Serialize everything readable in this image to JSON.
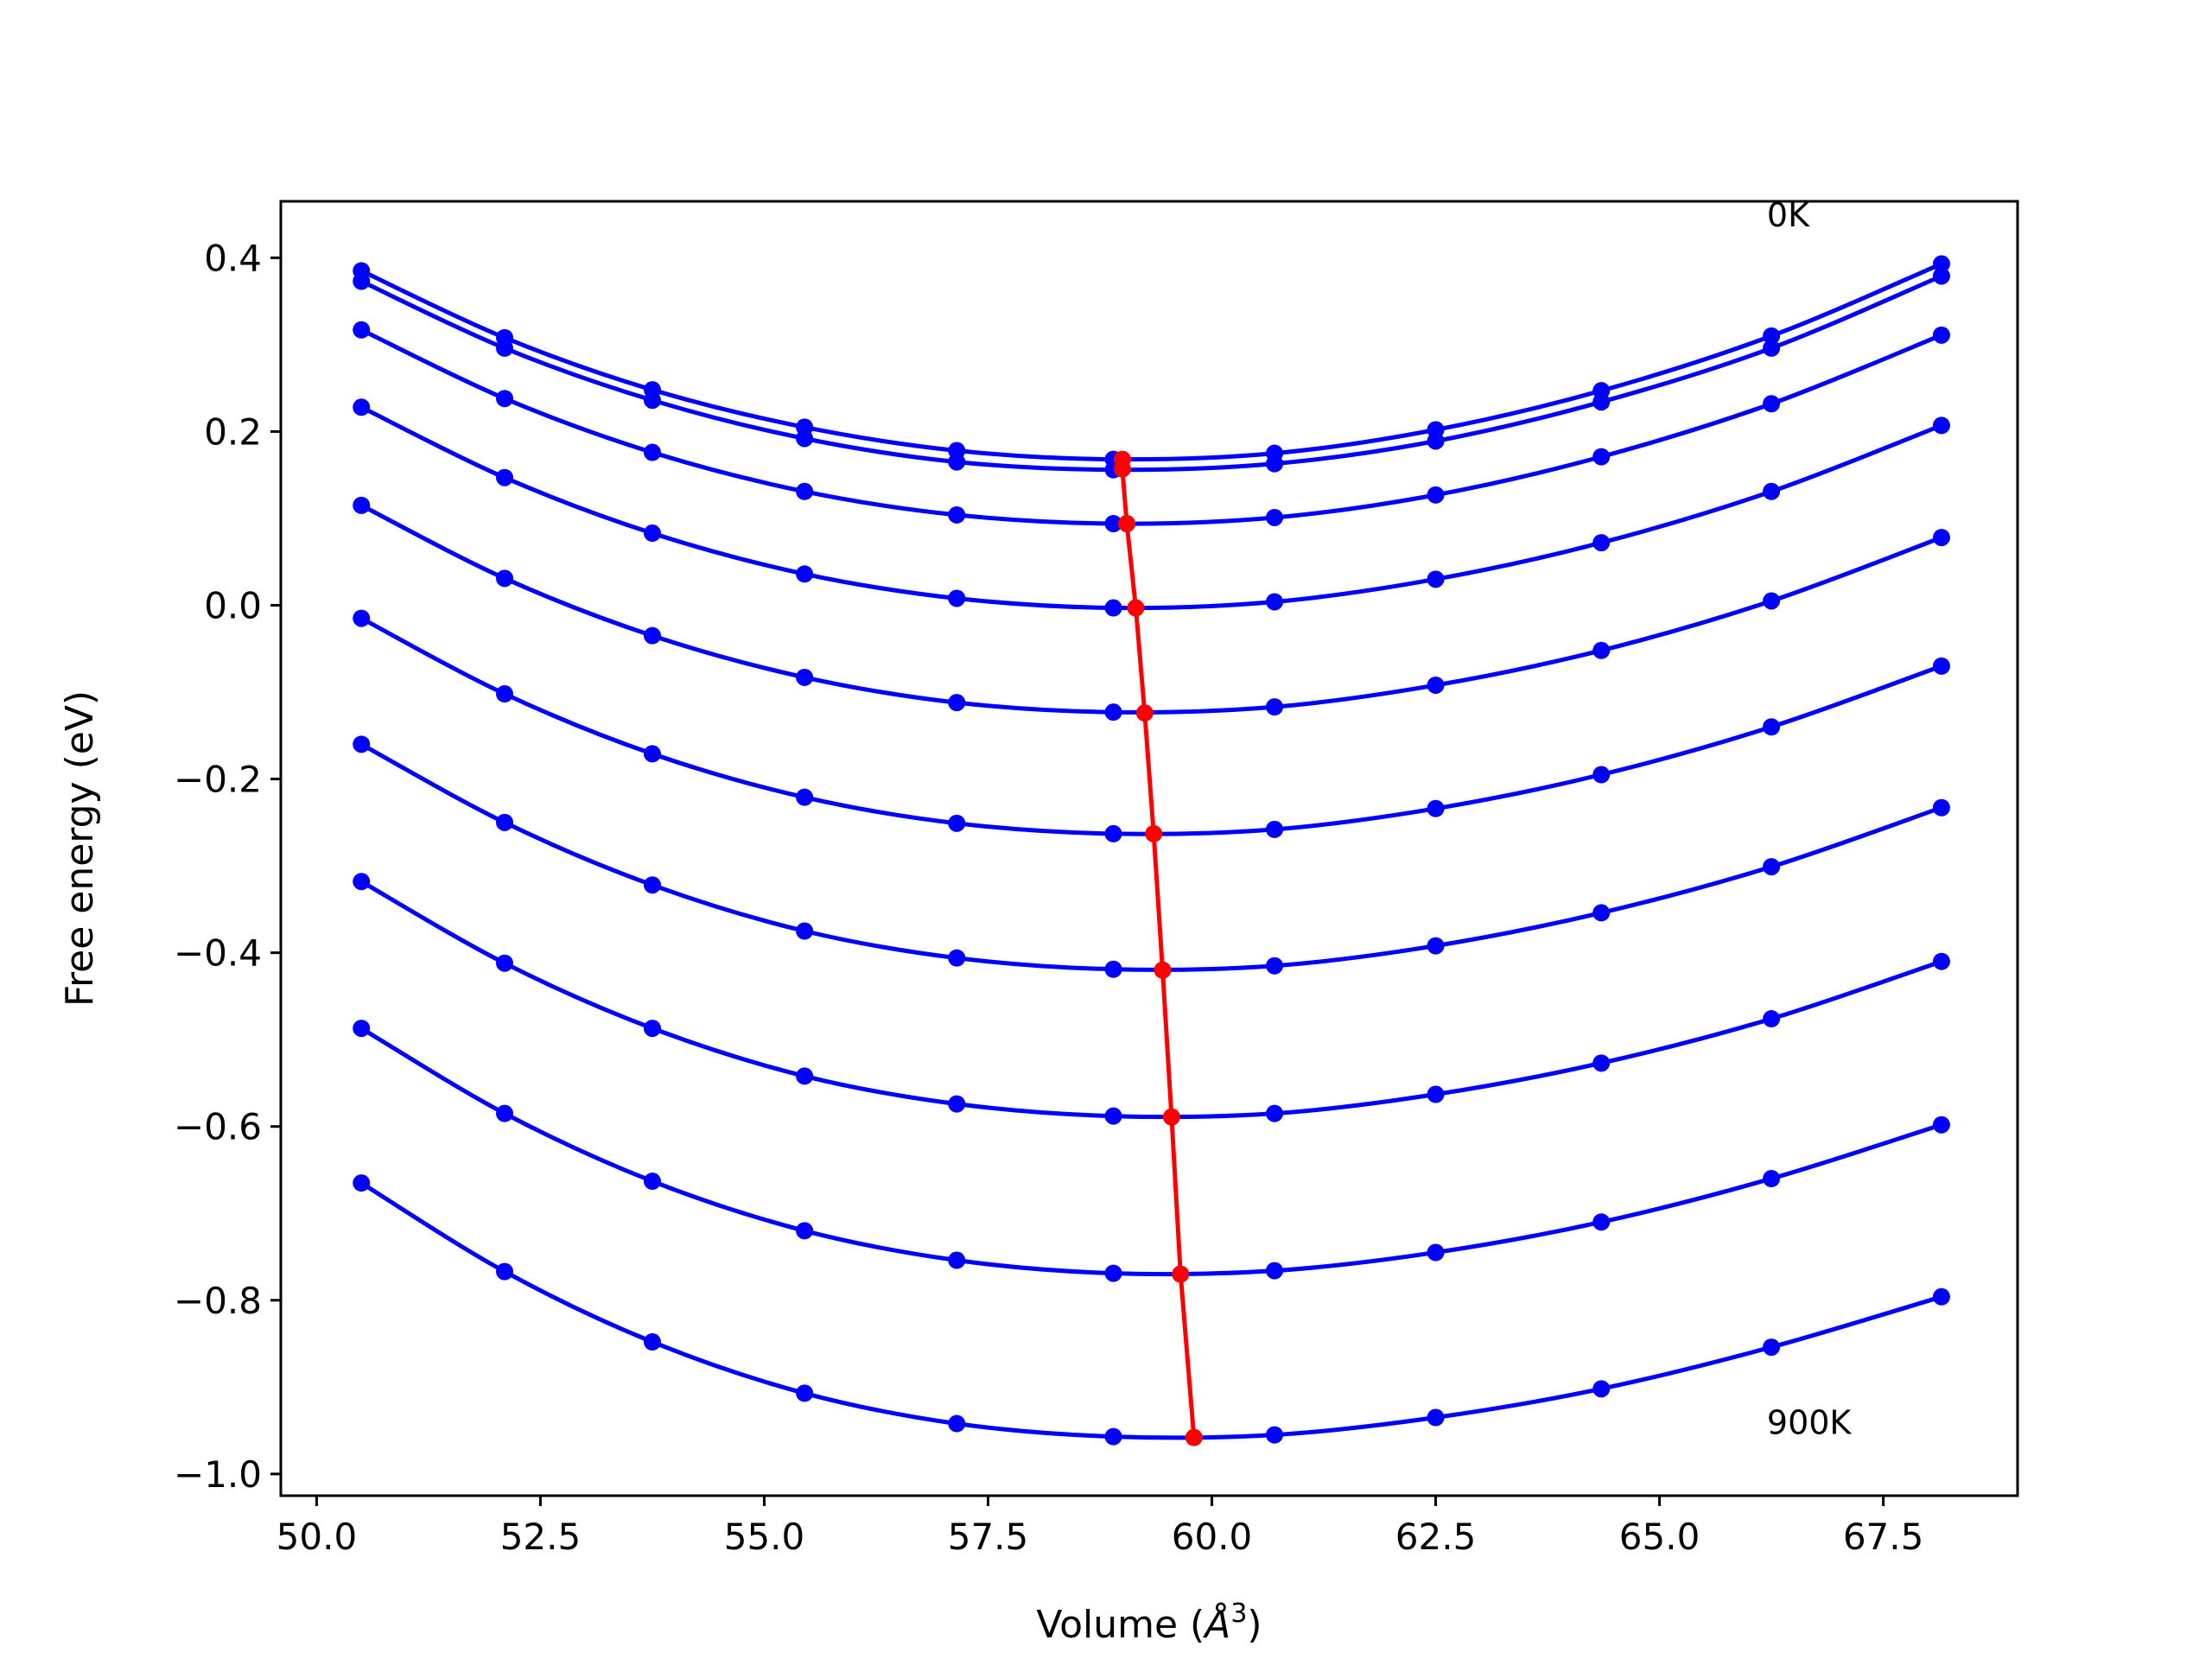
{
  "chart_data": {
    "type": "line",
    "xlabel": "Volume (",
    "xlabel_unit": "Å",
    "xlabel_power": "3",
    "xlabel_close": ")",
    "ylabel": "Free energy (eV)",
    "xlim": [
      49.6,
      69.0
    ],
    "ylim": [
      -1.025,
      0.465
    ],
    "x_ticks": [
      50.0,
      52.5,
      55.0,
      57.5,
      60.0,
      62.5,
      65.0,
      67.5
    ],
    "x_tick_labels": [
      "50.0",
      "52.5",
      "55.0",
      "57.5",
      "60.0",
      "62.5",
      "65.0",
      "67.5"
    ],
    "y_ticks": [
      0.4,
      0.2,
      0.0,
      -0.2,
      -0.4,
      -0.6,
      -0.8,
      -1.0
    ],
    "y_tick_labels": [
      "0.4",
      "0.2",
      "0.0",
      "−0.2",
      "−0.4",
      "−0.6",
      "−0.8",
      "−1.0"
    ],
    "grid": false,
    "annotations": [
      {
        "text": "0K",
        "x": 66.2,
        "y": 0.45
      },
      {
        "text": "900K",
        "x": 66.2,
        "y": -0.94
      }
    ],
    "colors": {
      "series": "#0000ff",
      "minimum_line": "#ff0000",
      "axes": "#000000"
    },
    "x": [
      50.5,
      52.1,
      53.75,
      55.45,
      57.15,
      58.9,
      60.7,
      62.5,
      64.35,
      66.25,
      68.15
    ],
    "series": [
      {
        "values": [
          0.385,
          0.308,
          0.248,
          0.205,
          0.178,
          0.168,
          0.175,
          0.202,
          0.247,
          0.31,
          0.393
        ],
        "min": [
          59.0,
          0.168
        ]
      },
      {
        "values": [
          0.373,
          0.296,
          0.236,
          0.192,
          0.165,
          0.156,
          0.163,
          0.189,
          0.234,
          0.296,
          0.379
        ],
        "min": [
          59.0,
          0.157
        ]
      },
      {
        "values": [
          0.317,
          0.238,
          0.176,
          0.131,
          0.104,
          0.094,
          0.101,
          0.127,
          0.171,
          0.232,
          0.311
        ],
        "min": [
          59.05,
          0.094
        ]
      },
      {
        "values": [
          0.228,
          0.147,
          0.083,
          0.036,
          0.008,
          -0.003,
          0.004,
          0.03,
          0.072,
          0.131,
          0.207
        ],
        "min": [
          59.15,
          -0.003
        ]
      },
      {
        "values": [
          0.115,
          0.031,
          -0.035,
          -0.083,
          -0.112,
          -0.123,
          -0.117,
          -0.092,
          -0.052,
          0.005,
          0.078
        ],
        "min": [
          59.25,
          -0.124
        ]
      },
      {
        "values": [
          -0.015,
          -0.102,
          -0.171,
          -0.221,
          -0.251,
          -0.263,
          -0.258,
          -0.234,
          -0.195,
          -0.14,
          -0.07
        ],
        "min": [
          59.35,
          -0.263
        ]
      },
      {
        "values": [
          -0.16,
          -0.25,
          -0.322,
          -0.375,
          -0.406,
          -0.419,
          -0.415,
          -0.392,
          -0.354,
          -0.301,
          -0.233
        ],
        "min": [
          59.45,
          -0.42
        ]
      },
      {
        "values": [
          -0.318,
          -0.412,
          -0.487,
          -0.542,
          -0.574,
          -0.588,
          -0.585,
          -0.563,
          -0.527,
          -0.476,
          -0.41
        ],
        "min": [
          59.55,
          -0.589
        ]
      },
      {
        "values": [
          -0.487,
          -0.585,
          -0.663,
          -0.72,
          -0.754,
          -0.769,
          -0.766,
          -0.745,
          -0.71,
          -0.66,
          -0.598
        ],
        "min": [
          59.65,
          -0.77
        ]
      },
      {
        "values": [
          -0.665,
          -0.767,
          -0.848,
          -0.907,
          -0.942,
          -0.957,
          -0.955,
          -0.935,
          -0.902,
          -0.854,
          -0.796
        ],
        "min": [
          59.8,
          -0.958
        ]
      }
    ]
  }
}
